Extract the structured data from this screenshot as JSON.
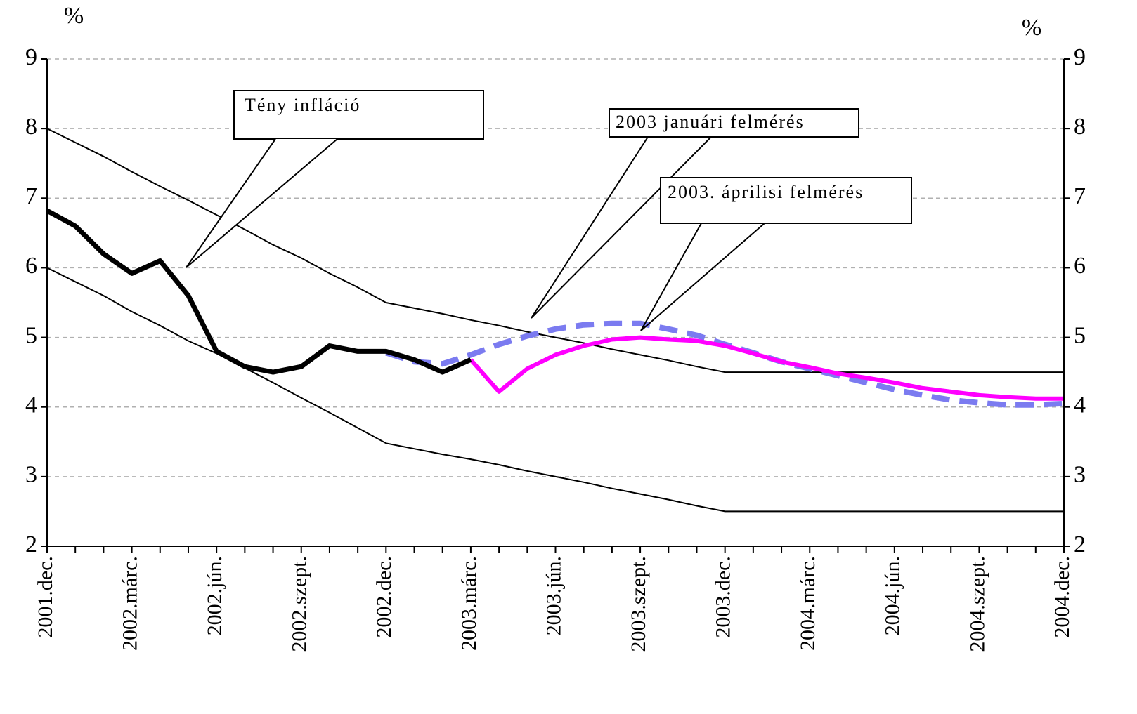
{
  "chart_data": {
    "type": "line",
    "y_unit_left": "%",
    "y_unit_right": "%",
    "categories": [
      "2001.dec.",
      null,
      null,
      "2002.márc.",
      null,
      null,
      "2002.jún.",
      null,
      null,
      "2002.szept.",
      null,
      null,
      "2002.dec.",
      null,
      null,
      "2003.márc.",
      null,
      null,
      "2003.jún.",
      null,
      null,
      "2003.szept.",
      null,
      null,
      "2003.dec.",
      null,
      null,
      "2004.márc.",
      null,
      null,
      "2004.jún.",
      null,
      null,
      "2004.szept.",
      null,
      null,
      "2004.dec."
    ],
    "series": [
      {
        "color": "#000000",
        "width": 2,
        "values": [
          8,
          7.8,
          7.6,
          7.38,
          7.17,
          6.97,
          6.76,
          6.55,
          6.33,
          6.14,
          5.92,
          5.72,
          5.5,
          5.42,
          5.34,
          5.25,
          5.17,
          5.08,
          5.0,
          4.92,
          4.83,
          4.75,
          4.67,
          4.58,
          4.5,
          4.5,
          4.5,
          4.5,
          4.5,
          4.5,
          4.5,
          4.5,
          4.5,
          4.5,
          4.5,
          4.5,
          4.5
        ]
      },
      {
        "color": "#000000",
        "width": 2,
        "values": [
          6,
          5.8,
          5.6,
          5.37,
          5.17,
          4.95,
          4.77,
          4.56,
          4.35,
          4.13,
          3.92,
          3.7,
          3.48,
          3.4,
          3.32,
          3.25,
          3.17,
          3.08,
          3.0,
          2.92,
          2.83,
          2.75,
          2.67,
          2.58,
          2.5,
          2.5,
          2.5,
          2.5,
          2.5,
          2.5,
          2.5,
          2.5,
          2.5,
          2.5,
          2.5,
          2.5,
          2.5
        ]
      },
      {
        "name": "2003 januári felmérés",
        "color": "#7b7bf0",
        "width": 8,
        "dashed": true,
        "values": [
          null,
          null,
          null,
          null,
          null,
          null,
          null,
          null,
          null,
          null,
          null,
          null,
          4.78,
          4.65,
          4.62,
          4.75,
          4.9,
          5.02,
          5.12,
          5.18,
          5.2,
          5.2,
          5.12,
          5.03,
          4.9,
          4.78,
          4.65,
          4.55,
          4.45,
          4.35,
          4.25,
          4.17,
          4.1,
          4.06,
          4.03,
          4.03,
          4.05
        ]
      },
      {
        "name": "2003. áprilisi felmérés",
        "color": "#ff00ff",
        "width": 6,
        "values": [
          null,
          null,
          null,
          null,
          null,
          null,
          null,
          null,
          null,
          null,
          null,
          null,
          null,
          null,
          null,
          4.68,
          4.22,
          4.55,
          4.75,
          4.88,
          4.97,
          5.0,
          4.97,
          4.95,
          4.88,
          4.77,
          4.65,
          4.57,
          4.48,
          4.42,
          4.35,
          4.27,
          4.22,
          4.17,
          4.14,
          4.12,
          4.12
        ]
      },
      {
        "name": "Tény infláció",
        "color": "#000000",
        "width": 7,
        "values": [
          6.82,
          6.6,
          6.2,
          5.92,
          6.1,
          5.6,
          4.8,
          4.58,
          4.5,
          4.58,
          4.88,
          4.8,
          4.8,
          4.68,
          4.5,
          4.68,
          null,
          null,
          null,
          null,
          null,
          null,
          null,
          null,
          null,
          null,
          null,
          null,
          null,
          null,
          null,
          null,
          null,
          null,
          null,
          null,
          null
        ]
      }
    ],
    "ylim": [
      2,
      9
    ],
    "yticks": [
      2,
      3,
      4,
      5,
      6,
      7,
      8,
      9
    ],
    "grid": true
  }
}
